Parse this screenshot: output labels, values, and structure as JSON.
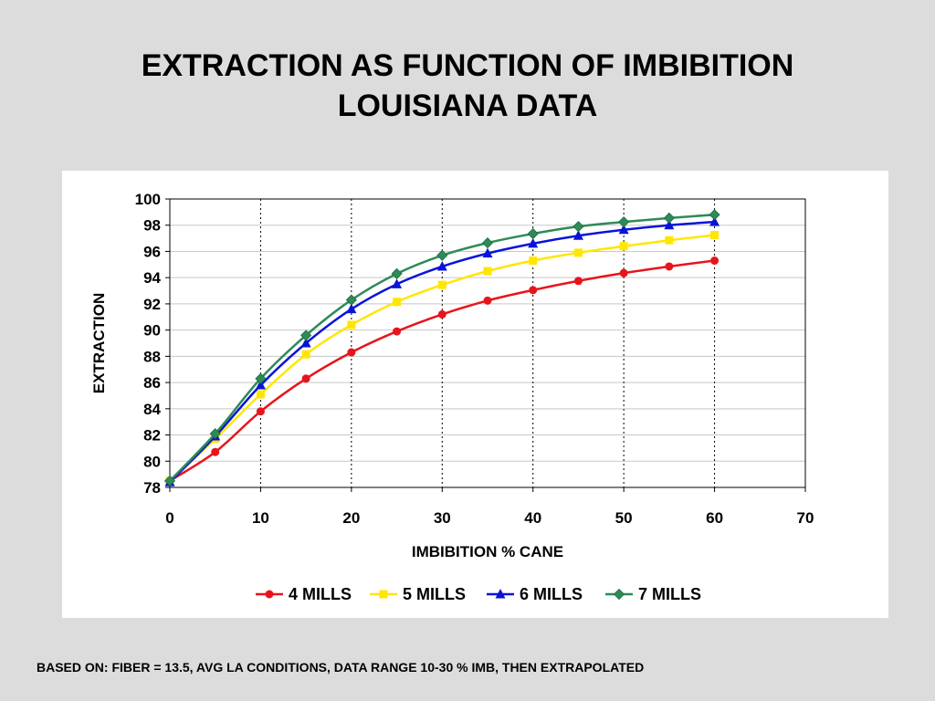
{
  "slide": {
    "title_line1": "EXTRACTION AS FUNCTION OF IMBIBITION",
    "title_line2": "LOUISIANA DATA",
    "footnote": "BASED ON: FIBER = 13.5, AVG LA CONDITIONS, DATA RANGE 10-30 % IMB, THEN EXTRAPOLATED"
  },
  "chart_data": {
    "type": "line",
    "title": "",
    "xlabel": "IMBIBITION % CANE",
    "ylabel": "EXTRACTION",
    "xlim": [
      0,
      70
    ],
    "ylim": [
      78,
      100
    ],
    "x_ticks": [
      0,
      10,
      20,
      30,
      40,
      50,
      60,
      70
    ],
    "y_ticks": [
      78,
      80,
      82,
      84,
      86,
      88,
      90,
      92,
      94,
      96,
      98,
      100
    ],
    "grid": {
      "horizontal": "solid",
      "vertical": "dotted"
    },
    "legend_position": "bottom",
    "x": [
      0,
      5,
      10,
      15,
      20,
      25,
      30,
      35,
      40,
      45,
      50,
      55,
      60
    ],
    "series": [
      {
        "name": "4 MILLS",
        "color": "#e8141c",
        "marker": "circle",
        "values": [
          78.5,
          80.7,
          83.8,
          86.3,
          88.3,
          89.9,
          91.2,
          92.25,
          93.05,
          93.75,
          94.35,
          94.85,
          95.3
        ]
      },
      {
        "name": "5 MILLS",
        "color": "#ffe600",
        "marker": "square",
        "values": [
          78.5,
          81.7,
          85.1,
          88.15,
          90.4,
          92.15,
          93.45,
          94.5,
          95.3,
          95.9,
          96.4,
          96.85,
          97.25
        ]
      },
      {
        "name": "6 MILLS",
        "color": "#0a14d8",
        "marker": "triangle",
        "values": [
          78.4,
          81.9,
          85.8,
          89.0,
          91.6,
          93.5,
          94.85,
          95.85,
          96.6,
          97.2,
          97.65,
          98.0,
          98.25
        ]
      },
      {
        "name": "7 MILLS",
        "color": "#2e8b57",
        "marker": "diamond",
        "values": [
          78.5,
          82.1,
          86.3,
          89.6,
          92.3,
          94.3,
          95.7,
          96.65,
          97.35,
          97.9,
          98.25,
          98.55,
          98.8
        ]
      }
    ]
  }
}
